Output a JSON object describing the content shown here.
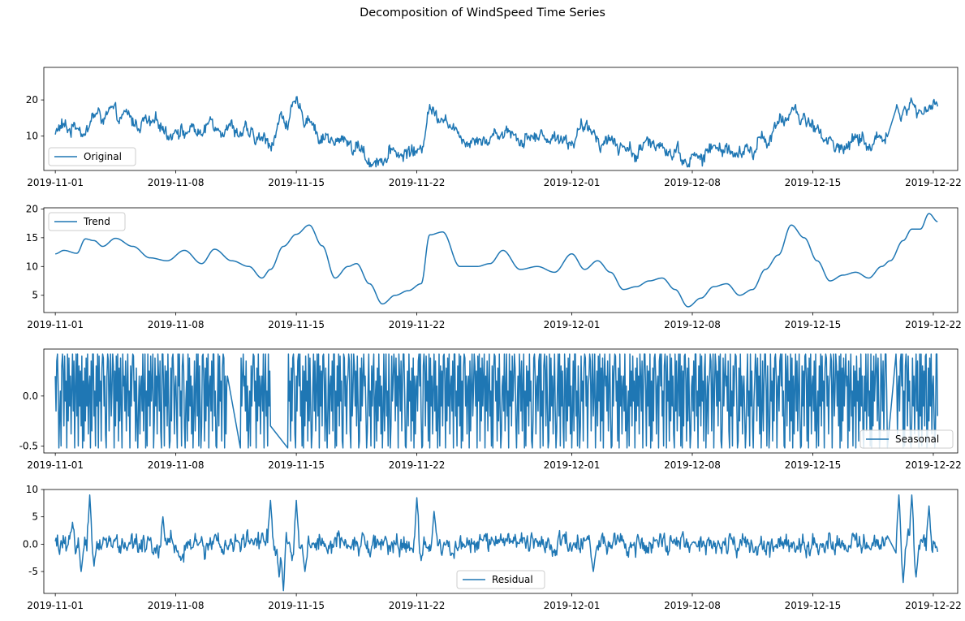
{
  "figure": {
    "title": "Decomposition of WindSpeed Time Series"
  },
  "chart_data": [
    {
      "type": "line",
      "id": "original",
      "legend": "Original",
      "legend_position": "lower-left",
      "color": "#1f77b4",
      "x_ticks": [
        "2019-11-01",
        "2019-11-08",
        "2019-11-15",
        "2019-11-22",
        "2019-12-01",
        "2019-12-08",
        "2019-12-15",
        "2019-12-22"
      ],
      "xlim": [
        "2019-10-31T08:00",
        "2019-12-23T10:00"
      ],
      "y_ticks": [
        10,
        20
      ],
      "ylim": [
        0.5,
        29
      ],
      "gaps": [
        [
          "2019-12-19T08:00",
          "2019-12-19T20:00"
        ]
      ],
      "keypoints": {
        "x": [
          "2019-11-01T00:00",
          "2019-11-01T12:00",
          "2019-11-02T06:00",
          "2019-11-02T18:00",
          "2019-11-03T06:00",
          "2019-11-03T18:00",
          "2019-11-04T12:00",
          "2019-11-05T12:00",
          "2019-11-06T12:00",
          "2019-11-07T12:00",
          "2019-11-08T12:00",
          "2019-11-09T12:00",
          "2019-11-10T06:00",
          "2019-11-11T06:00",
          "2019-11-12T06:00",
          "2019-11-13T00:00",
          "2019-11-13T12:00",
          "2019-11-14T06:00",
          "2019-11-15T00:00",
          "2019-11-15T18:00",
          "2019-11-16T12:00",
          "2019-11-17T06:00",
          "2019-11-18T00:00",
          "2019-11-18T12:00",
          "2019-11-19T06:00",
          "2019-11-20T00:00",
          "2019-11-20T18:00",
          "2019-11-21T12:00",
          "2019-11-22T06:00",
          "2019-11-22T18:00",
          "2019-11-23T12:00",
          "2019-11-24T12:00",
          "2019-11-25T12:00",
          "2019-11-26T06:00",
          "2019-11-27T00:00",
          "2019-11-28T00:00",
          "2019-11-29T00:00",
          "2019-11-30T00:00",
          "2019-12-01T00:00",
          "2019-12-01T18:00",
          "2019-12-02T12:00",
          "2019-12-03T06:00",
          "2019-12-04T00:00",
          "2019-12-04T18:00",
          "2019-12-05T12:00",
          "2019-12-06T06:00",
          "2019-12-07T00:00",
          "2019-12-07T18:00",
          "2019-12-08T12:00",
          "2019-12-09T06:00",
          "2019-12-10T00:00",
          "2019-12-10T18:00",
          "2019-12-11T12:00",
          "2019-12-12T06:00",
          "2019-12-13T00:00",
          "2019-12-13T18:00",
          "2019-12-14T12:00",
          "2019-12-15T06:00",
          "2019-12-16T00:00",
          "2019-12-16T18:00",
          "2019-12-17T12:00",
          "2019-12-18T06:00",
          "2019-12-19T00:00",
          "2019-12-19T08:00",
          "2019-12-19T20:00",
          "2019-12-20T12:00",
          "2019-12-21T06:00",
          "2019-12-22T00:00",
          "2019-12-22T06:00"
        ],
        "y": [
          11,
          12,
          13,
          12,
          15,
          16,
          15,
          14,
          13,
          12,
          12,
          11,
          14,
          13,
          10,
          8,
          9,
          15,
          17,
          15,
          10,
          8,
          9,
          7,
          3.5,
          4,
          5,
          5.5,
          6,
          18,
          16,
          10,
          10,
          9.5,
          12,
          10,
          10,
          10,
          9,
          12,
          10,
          9,
          7,
          6,
          7,
          8,
          6,
          3.5,
          4,
          6.5,
          6.5,
          4.5,
          6,
          10,
          12,
          17,
          15,
          12,
          8,
          7,
          9,
          8,
          9,
          13,
          16,
          18,
          17,
          18.5,
          18
        ]
      }
    },
    {
      "type": "line",
      "id": "trend",
      "legend": "Trend",
      "legend_position": "upper-left",
      "color": "#1f77b4",
      "x_ticks": [
        "2019-11-01",
        "2019-11-08",
        "2019-11-15",
        "2019-11-22",
        "2019-12-01",
        "2019-12-08",
        "2019-12-15",
        "2019-12-22"
      ],
      "xlim": [
        "2019-10-31T08:00",
        "2019-12-23T10:00"
      ],
      "y_ticks": [
        5,
        10,
        15,
        20
      ],
      "ylim": [
        2,
        20.2
      ],
      "gaps": [],
      "keypoints": {
        "x": [
          "2019-11-01T00:00",
          "2019-11-01T12:00",
          "2019-11-02T06:00",
          "2019-11-02T18:00",
          "2019-11-03T06:00",
          "2019-11-03T18:00",
          "2019-11-04T12:00",
          "2019-11-05T12:00",
          "2019-11-06T12:00",
          "2019-11-07T12:00",
          "2019-11-08T12:00",
          "2019-11-09T12:00",
          "2019-11-10T06:00",
          "2019-11-11T06:00",
          "2019-11-12T06:00",
          "2019-11-13T00:00",
          "2019-11-13T12:00",
          "2019-11-14T06:00",
          "2019-11-15T00:00",
          "2019-11-15T18:00",
          "2019-11-16T12:00",
          "2019-11-17T06:00",
          "2019-11-18T00:00",
          "2019-11-18T12:00",
          "2019-11-19T06:00",
          "2019-11-20T00:00",
          "2019-11-20T18:00",
          "2019-11-21T12:00",
          "2019-11-22T06:00",
          "2019-11-22T18:00",
          "2019-11-23T12:00",
          "2019-11-24T12:00",
          "2019-11-25T12:00",
          "2019-11-26T06:00",
          "2019-11-27T00:00",
          "2019-11-28T00:00",
          "2019-11-29T00:00",
          "2019-11-30T00:00",
          "2019-12-01T00:00",
          "2019-12-01T18:00",
          "2019-12-02T12:00",
          "2019-12-03T06:00",
          "2019-12-04T00:00",
          "2019-12-04T18:00",
          "2019-12-05T12:00",
          "2019-12-06T06:00",
          "2019-12-07T00:00",
          "2019-12-07T18:00",
          "2019-12-08T12:00",
          "2019-12-09T06:00",
          "2019-12-10T00:00",
          "2019-12-10T18:00",
          "2019-12-11T12:00",
          "2019-12-12T06:00",
          "2019-12-13T00:00",
          "2019-12-13T18:00",
          "2019-12-14T12:00",
          "2019-12-15T06:00",
          "2019-12-16T00:00",
          "2019-12-16T18:00",
          "2019-12-17T12:00",
          "2019-12-18T06:00",
          "2019-12-19T00:00",
          "2019-12-19T12:00",
          "2019-12-20T06:00",
          "2019-12-20T18:00",
          "2019-12-21T06:00",
          "2019-12-21T18:00",
          "2019-12-22T06:00"
        ],
        "y": [
          12.2,
          12.8,
          12.3,
          14.8,
          14.5,
          13.5,
          14.9,
          13.5,
          11.5,
          11,
          12.8,
          10.5,
          13,
          11,
          10,
          8,
          9.5,
          13.5,
          15.6,
          17.2,
          13.6,
          8,
          10,
          10.5,
          7,
          3.5,
          5,
          5.8,
          7,
          15.5,
          16,
          10,
          10,
          10.5,
          12.8,
          9.5,
          10,
          9,
          12.2,
          9.5,
          11,
          9,
          6,
          6.5,
          7.5,
          8,
          6,
          3,
          4.5,
          6.5,
          7,
          5,
          6,
          9.5,
          12,
          17.2,
          15,
          11,
          7.5,
          8.5,
          9,
          8,
          10,
          11,
          14.5,
          16.5,
          16.5,
          19.2,
          17.8
        ]
      }
    },
    {
      "type": "line",
      "id": "seasonal",
      "legend": "Seasonal",
      "legend_position": "lower-right",
      "color": "#1f77b4",
      "x_ticks": [
        "2019-11-01",
        "2019-11-08",
        "2019-11-15",
        "2019-11-22",
        "2019-12-01",
        "2019-12-08",
        "2019-12-15",
        "2019-12-22"
      ],
      "xlim": [
        "2019-10-31T08:00",
        "2019-12-23T10:00"
      ],
      "y_ticks": [
        -0.5,
        0.0
      ],
      "ylim": [
        -0.57,
        0.47
      ],
      "period_hours": 24,
      "pattern": [
        0.2,
        -0.15,
        0.35,
        -0.35,
        0.1,
        0.42,
        -0.2,
        0.05,
        -0.5,
        0.3,
        -0.1,
        0.25,
        -0.3,
        0.4,
        -0.05,
        0.15,
        -0.45,
        0.28,
        -0.25,
        0.38,
        -0.1,
        0.2,
        -0.38,
        0.1
      ],
      "gaps": [
        [
          "2019-11-11T00:00",
          "2019-11-11T18:00"
        ],
        [
          "2019-11-13T12:00",
          "2019-11-14T12:00"
        ],
        [
          "2019-12-19T08:00",
          "2019-12-19T20:00"
        ]
      ]
    },
    {
      "type": "line",
      "id": "residual",
      "legend": "Residual",
      "legend_position": "lower-center",
      "color": "#1f77b4",
      "x_ticks": [
        "2019-11-01",
        "2019-11-08",
        "2019-11-15",
        "2019-11-22",
        "2019-12-01",
        "2019-12-08",
        "2019-12-15",
        "2019-12-22"
      ],
      "xlim": [
        "2019-10-31T08:00",
        "2019-12-23T10:00"
      ],
      "y_ticks": [
        -5,
        0,
        5,
        10
      ],
      "ylim": [
        -9,
        10
      ],
      "gaps": [
        [
          "2019-12-19T08:00",
          "2019-12-19T20:00"
        ]
      ],
      "extremes": {
        "x": [
          "2019-11-02T00:00",
          "2019-11-02T12:00",
          "2019-11-03T00:00",
          "2019-11-03T06:00",
          "2019-11-07T06:00",
          "2019-11-13T12:00",
          "2019-11-14T00:00",
          "2019-11-14T06:00",
          "2019-11-14T18:00",
          "2019-11-15T00:00",
          "2019-11-15T12:00",
          "2019-11-22T00:00",
          "2019-11-22T06:00",
          "2019-11-23T00:00",
          "2019-12-02T06:00",
          "2019-12-20T00:00",
          "2019-12-20T06:00",
          "2019-12-20T18:00",
          "2019-12-21T00:00",
          "2019-12-21T18:00"
        ],
        "y": [
          4,
          -5,
          9,
          -4,
          5,
          8,
          -6,
          -8.5,
          -3,
          8,
          -5,
          8.5,
          -3,
          6,
          -5,
          9,
          -7,
          9,
          -6,
          7
        ]
      }
    }
  ]
}
